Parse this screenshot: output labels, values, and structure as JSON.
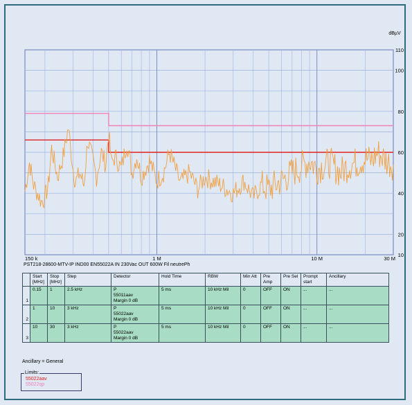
{
  "unit_label": "dBµV",
  "y_ticks": [
    "110",
    "100",
    "80",
    "60",
    "40",
    "20",
    "10"
  ],
  "x_ticks": [
    "150 k",
    "1 M",
    "10 M",
    "30 M"
  ],
  "caption": "PST218-28600-MTV-IP IND00 EN55022A IN 230Vac OUT 600W Fil neutrePh",
  "colors": {
    "trace": "#f0a042",
    "limit_qp": "#f080b8",
    "limit_av": "#e02020",
    "grid": "#9db4e0",
    "plot_border": "#7a8cc8",
    "table_bg": "#a9dcc4"
  },
  "chart_data": {
    "type": "line",
    "x_scale": "log",
    "xlim_mhz": [
      0.15,
      30
    ],
    "ylim": [
      10,
      110
    ],
    "ylabel": "dBµV",
    "series": [
      {
        "name": "55022qp",
        "role": "limit",
        "x": [
          0.15,
          0.5,
          0.5,
          30
        ],
        "values": [
          79,
          79,
          73,
          73
        ]
      },
      {
        "name": "55022aav",
        "role": "limit",
        "x": [
          0.15,
          0.5,
          0.5,
          30
        ],
        "values": [
          66,
          66,
          60,
          60
        ]
      },
      {
        "name": "",
        "role": "measurement",
        "x": [
          0.15,
          0.16,
          0.17,
          0.18,
          0.19,
          0.2,
          0.21,
          0.22,
          0.24,
          0.26,
          0.28,
          0.3,
          0.31,
          0.33,
          0.35,
          0.37,
          0.4,
          0.42,
          0.45,
          0.48,
          0.5,
          0.52,
          0.55,
          0.6,
          0.65,
          0.7,
          0.75,
          0.8,
          0.9,
          1.0,
          1.1,
          1.2,
          1.4,
          1.6,
          1.8,
          2.0,
          2.5,
          3.0,
          3.5,
          4.0,
          4.5,
          5.0,
          6.0,
          7.0,
          8.0,
          9.0,
          10,
          12,
          14,
          16,
          18,
          20,
          22,
          24,
          27,
          30
        ],
        "values": [
          41,
          55,
          44,
          40,
          36,
          38,
          44,
          62,
          48,
          58,
          72,
          52,
          45,
          50,
          44,
          66,
          55,
          48,
          60,
          54,
          70,
          55,
          58,
          52,
          65,
          50,
          58,
          48,
          56,
          46,
          50,
          60,
          45,
          50,
          42,
          48,
          44,
          40,
          46,
          38,
          44,
          42,
          46,
          50,
          53,
          56,
          52,
          55,
          50,
          54,
          55,
          57,
          56,
          60,
          56,
          54
        ]
      }
    ]
  },
  "table": {
    "headers": [
      "Start [MHz]",
      "Stop [MHz]",
      "Step",
      "Detector",
      "Hold Time",
      "RBW",
      "Min Att",
      "Pre Amp",
      "Pre Sel",
      "Prompt start",
      "Ancillary"
    ],
    "rows": [
      {
        "idx": "1",
        "start": "0.15",
        "stop": "1",
        "step": "2.5 kHz",
        "detector": "P",
        "detector_limit": "55011aav",
        "detector_margin": "Margin 0 dB",
        "hold": "5 ms",
        "rbw": "10 kHz Mil",
        "min_att": "0",
        "pre_amp": "OFF",
        "pre_sel": "ON",
        "prompt": "...",
        "ancillary": "..."
      },
      {
        "idx": "2",
        "start": "1",
        "stop": "10",
        "step": "3 kHz",
        "detector": "P",
        "detector_limit": "55022aav",
        "detector_margin": "Margin 0 dB",
        "hold": "5 ms",
        "rbw": "10 kHz Mil",
        "min_att": "0",
        "pre_amp": "OFF",
        "pre_sel": "ON",
        "prompt": "...",
        "ancillary": "..."
      },
      {
        "idx": "3",
        "start": "10",
        "stop": "30",
        "step": "3 kHz",
        "detector": "P",
        "detector_limit": "55022aav",
        "detector_margin": "Margin 0 dB",
        "hold": "5 ms",
        "rbw": "10 kHz Mil",
        "min_att": "0",
        "pre_amp": "OFF",
        "pre_sel": "ON",
        "prompt": "...",
        "ancillary": "..."
      }
    ]
  },
  "ancillary_note": "Ancillary = General",
  "limits": {
    "title": "Limits:",
    "items": [
      "55022aav",
      "55022qp"
    ]
  }
}
